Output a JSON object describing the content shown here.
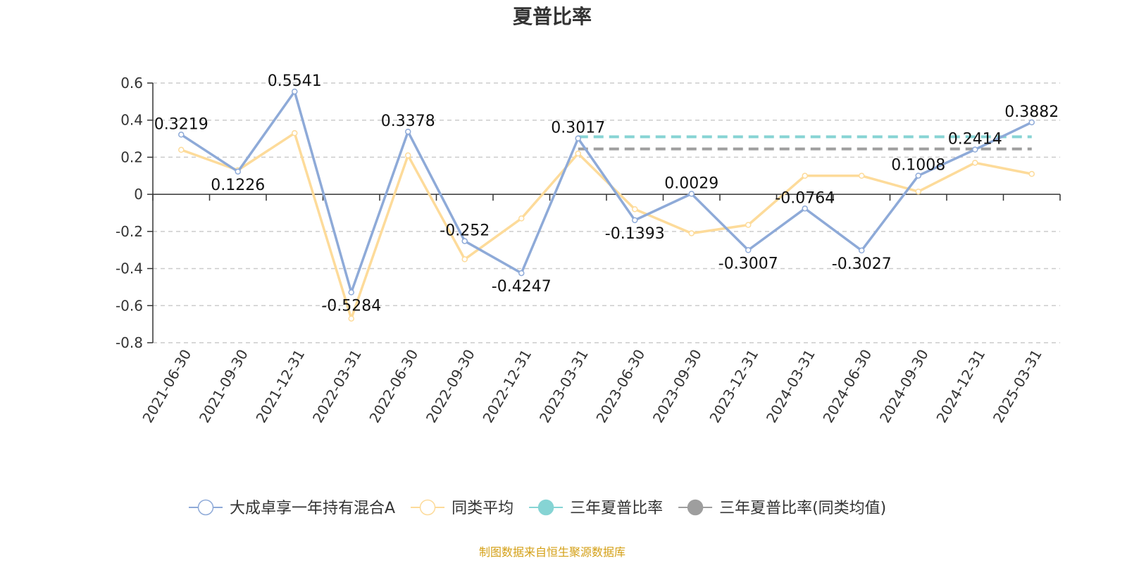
{
  "chart_data": {
    "type": "line",
    "title": "夏普比率",
    "categories": [
      "2021-06-30",
      "2021-09-30",
      "2021-12-31",
      "2022-03-31",
      "2022-06-30",
      "2022-09-30",
      "2022-12-31",
      "2023-03-31",
      "2023-06-30",
      "2023-09-30",
      "2023-12-31",
      "2024-03-31",
      "2024-06-30",
      "2024-09-30",
      "2024-12-31",
      "2025-03-31"
    ],
    "ylim": [
      -0.8,
      0.6
    ],
    "yticks": [
      "0.6",
      "0.4",
      "0.2",
      "0",
      "-0.2",
      "-0.4",
      "-0.6",
      "-0.8"
    ],
    "grid": true,
    "legend_position": "bottom",
    "series": [
      {
        "name": "大成卓享一年持有混合A",
        "color": "#8eaad8",
        "values": [
          0.3219,
          0.1226,
          0.5541,
          -0.5284,
          0.3378,
          -0.252,
          -0.4247,
          0.3017,
          -0.1393,
          0.0029,
          -0.3007,
          -0.0764,
          -0.3027,
          0.1008,
          0.2414,
          0.3882
        ],
        "labels": [
          "0.3219",
          "0.1226",
          "0.5541",
          "-0.5284",
          "0.3378",
          "-0.252",
          "-0.4247",
          "0.3017",
          "-0.1393",
          "0.0029",
          "-0.3007",
          "-0.0764",
          "-0.3027",
          "0.1008",
          "0.2414",
          "0.3882"
        ]
      },
      {
        "name": "同类平均",
        "color": "#fddb9a",
        "values": [
          0.24,
          0.13,
          0.33,
          -0.67,
          0.21,
          -0.35,
          -0.13,
          0.22,
          -0.08,
          -0.21,
          -0.165,
          0.1,
          0.1,
          0.015,
          0.17,
          0.11
        ]
      },
      {
        "name": "三年夏普比率",
        "color": "#86d4d4",
        "type": "reference",
        "value": 0.31,
        "from_index": 7
      },
      {
        "name": "三年夏普比率(同类均值)",
        "color": "#9e9e9e",
        "type": "reference",
        "value": 0.245,
        "from_index": 7
      }
    ]
  },
  "source_text": "制图数据来自恒生聚源数据库"
}
